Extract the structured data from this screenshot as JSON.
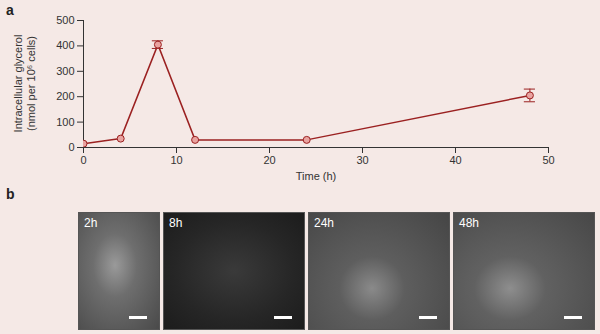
{
  "chart_data": {
    "type": "line",
    "panel_label": "a",
    "x_label": "Time (h)",
    "y_label": "Intracellular glycerol (nmol per 10⁶ cells)",
    "x": [
      0,
      4,
      8,
      12,
      24,
      48
    ],
    "series": [
      {
        "color": "#9b2121",
        "marker": "circle",
        "values": [
          15,
          35,
          405,
          30,
          30,
          205
        ],
        "errors": [
          null,
          null,
          15,
          null,
          null,
          25
        ]
      }
    ],
    "xlim": [
      0,
      50
    ],
    "xticks": [
      0,
      10,
      20,
      30,
      40,
      50
    ],
    "ylim": [
      0,
      500
    ],
    "yticks": [
      0,
      100,
      200,
      300,
      400,
      500
    ],
    "grid": false
  },
  "images": {
    "panel_label": "b",
    "frames": [
      "2h",
      "8h",
      "24h",
      "48h"
    ]
  }
}
